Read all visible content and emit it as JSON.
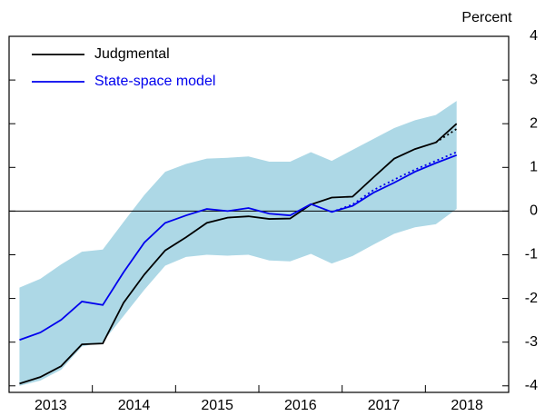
{
  "chart_data": {
    "type": "line",
    "y_label": "Percent",
    "x": [
      2013.125,
      2013.375,
      2013.625,
      2013.875,
      2014.125,
      2014.375,
      2014.625,
      2014.875,
      2015.125,
      2015.375,
      2015.625,
      2015.875,
      2016.125,
      2016.375,
      2016.625,
      2016.875,
      2017.125,
      2017.375,
      2017.625,
      2017.875,
      2018.125,
      2018.375
    ],
    "series": [
      {
        "name": "Judgmental",
        "color": "#000000",
        "dash": false,
        "values": [
          -3.95,
          -3.8,
          -3.55,
          -3.05,
          -3.03,
          -2.1,
          -1.45,
          -0.9,
          -0.6,
          -0.27,
          -0.15,
          -0.12,
          -0.18,
          -0.17,
          0.15,
          0.31,
          0.33,
          0.77,
          1.2,
          1.42,
          1.57,
          2.0
        ]
      },
      {
        "name": "State-space model",
        "color": "#0000ee",
        "dash": false,
        "values": [
          -2.95,
          -2.78,
          -2.49,
          -2.07,
          -2.15,
          -1.4,
          -0.72,
          -0.27,
          -0.1,
          0.05,
          0.0,
          0.07,
          -0.06,
          -0.1,
          0.16,
          -0.02,
          0.12,
          0.42,
          0.65,
          0.9,
          1.1,
          1.28
        ]
      },
      {
        "color": "#0000ee",
        "dash": true,
        "values": [
          null,
          null,
          null,
          null,
          null,
          null,
          null,
          null,
          null,
          null,
          null,
          null,
          null,
          null,
          null,
          -0.02,
          0.15,
          0.48,
          0.72,
          0.95,
          1.15,
          1.35
        ]
      },
      {
        "color": "#000000",
        "dash": true,
        "values": [
          null,
          null,
          null,
          null,
          null,
          null,
          null,
          null,
          null,
          null,
          null,
          null,
          null,
          null,
          null,
          null,
          null,
          null,
          null,
          null,
          1.57,
          1.88
        ]
      }
    ],
    "band": {
      "color": "#add8e6",
      "upper": [
        -1.75,
        -1.55,
        -1.22,
        -0.93,
        -0.88,
        -0.25,
        0.37,
        0.9,
        1.08,
        1.2,
        1.22,
        1.25,
        1.13,
        1.13,
        1.35,
        1.15,
        1.4,
        1.65,
        1.9,
        2.08,
        2.2,
        2.52
      ],
      "lower": [
        -4.0,
        -3.88,
        -3.63,
        -3.1,
        -3.0,
        -2.4,
        -1.8,
        -1.25,
        -1.05,
        -1.0,
        -1.02,
        -1.0,
        -1.13,
        -1.15,
        -0.98,
        -1.2,
        -1.03,
        -0.77,
        -0.52,
        -0.37,
        -0.3,
        0.05
      ]
    },
    "xlim": [
      2013,
      2019
    ],
    "xticks": [
      {
        "value": 2013.5,
        "label": "2013"
      },
      {
        "value": 2014.5,
        "label": "2014"
      },
      {
        "value": 2015.5,
        "label": "2015"
      },
      {
        "value": 2016.5,
        "label": "2016"
      },
      {
        "value": 2017.5,
        "label": "2017"
      },
      {
        "value": 2018.5,
        "label": "2018"
      }
    ],
    "ylim": [
      -4.15,
      4
    ],
    "yticks": [
      -4,
      -3,
      -2,
      -1,
      0,
      1,
      2,
      3,
      4
    ],
    "zero_line": true,
    "legend": "top-left"
  }
}
